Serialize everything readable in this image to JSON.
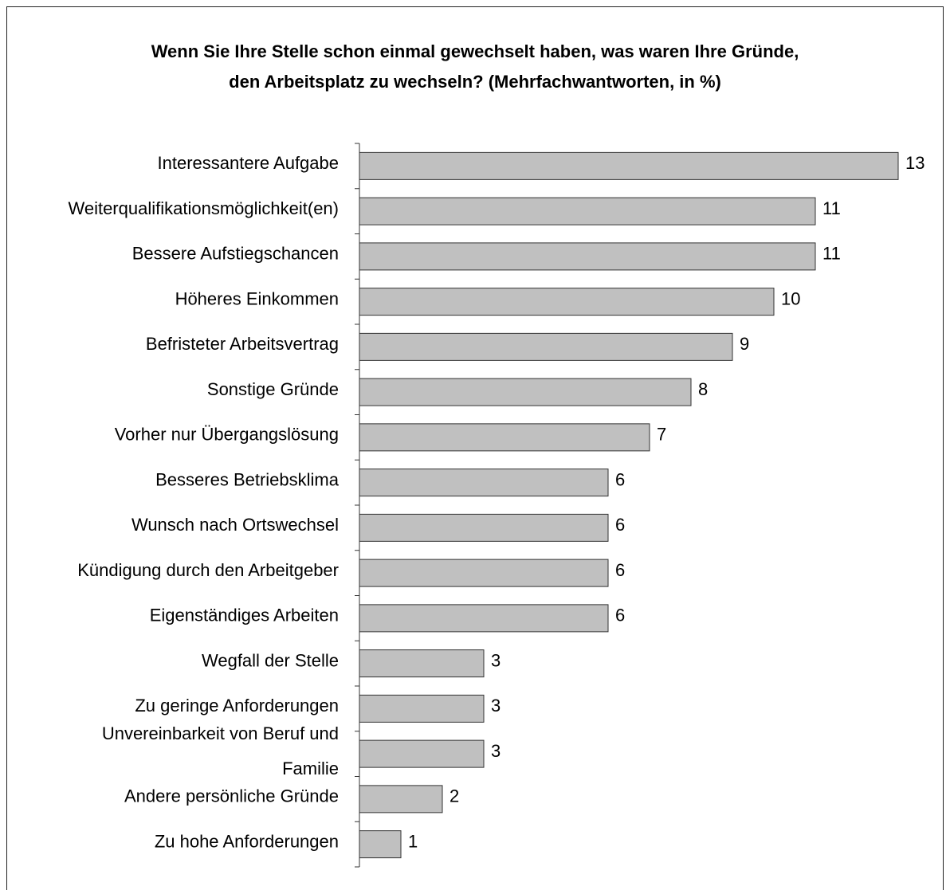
{
  "chart_data": {
    "type": "bar",
    "orientation": "horizontal",
    "title_line1": "Wenn Sie Ihre Stelle schon einmal gewechselt haben, was waren Ihre Gründe,",
    "title_line2": "den Arbeitsplatz zu wechseln? (Mehrfachwantworten, in %)",
    "categories": [
      [
        "Interessantere Aufgabe"
      ],
      [
        "Weiterqualifikationsmöglichkeit(en)"
      ],
      [
        "Bessere Aufstiegschancen"
      ],
      [
        "Höheres Einkommen"
      ],
      [
        "Befristeter Arbeitsvertrag"
      ],
      [
        "Sonstige Gründe"
      ],
      [
        "Vorher nur Übergangslösung"
      ],
      [
        "Besseres Betriebsklima"
      ],
      [
        "Wunsch nach Ortswechsel"
      ],
      [
        "Kündigung durch den Arbeitgeber"
      ],
      [
        "Eigenständiges Arbeiten"
      ],
      [
        "Wegfall der Stelle"
      ],
      [
        "Zu geringe Anforderungen"
      ],
      [
        "Unvereinbarkeit von Beruf und",
        "Familie"
      ],
      [
        "Andere persönliche Gründe"
      ],
      [
        "Zu hohe Anforderungen"
      ]
    ],
    "values": [
      13,
      11,
      11,
      10,
      9,
      8,
      7,
      6,
      6,
      6,
      6,
      3,
      3,
      3,
      2,
      1
    ],
    "xlim": [
      0,
      13
    ],
    "bar_color": "#c0c0c0",
    "bar_stroke": "#333333",
    "grid": false,
    "legend": "none"
  }
}
